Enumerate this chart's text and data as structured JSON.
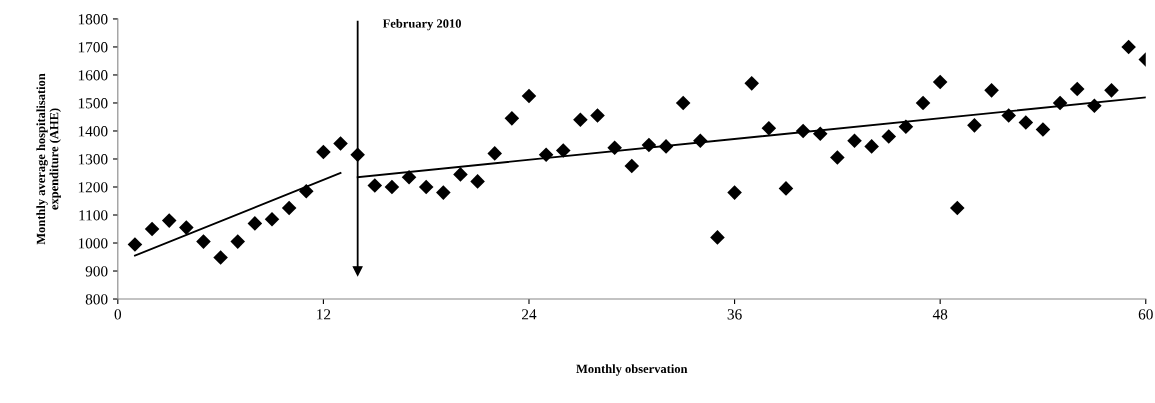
{
  "chart_data": {
    "type": "scatter",
    "xlabel": "Monthly observation",
    "ylabel": "Monthly average hospitalisation\nexpenditure (AHE)",
    "xlim": [
      0,
      60
    ],
    "xticks": [
      0,
      12,
      24,
      36,
      48,
      60
    ],
    "ylim": [
      800,
      1800
    ],
    "yticks": [
      800,
      900,
      1000,
      1100,
      1200,
      1300,
      1400,
      1500,
      1600,
      1700,
      1800
    ],
    "grid": false,
    "legend": false,
    "ref_lines": [
      {
        "axis": "x",
        "value": 14,
        "label": "February 2010"
      }
    ],
    "series": [
      {
        "marker": "diamond",
        "color": "#000000",
        "x": [
          1,
          2,
          3,
          4,
          5,
          6,
          7,
          8,
          9,
          10,
          11,
          12,
          13,
          14,
          15,
          16,
          17,
          18,
          19,
          20,
          21,
          22,
          23,
          24,
          25,
          26,
          27,
          28,
          29,
          30,
          31,
          32,
          33,
          34,
          35,
          36,
          37,
          38,
          39,
          40,
          41,
          42,
          43,
          44,
          45,
          46,
          47,
          48,
          49,
          50,
          51,
          52,
          53,
          54,
          55,
          56,
          57,
          58,
          59,
          60
        ],
        "values": [
          995,
          1050,
          1080,
          1055,
          1005,
          948,
          1005,
          1070,
          1085,
          1125,
          1185,
          1325,
          1355,
          1315,
          1205,
          1200,
          1235,
          1200,
          1180,
          1245,
          1220,
          1320,
          1445,
          1525,
          1315,
          1330,
          1440,
          1455,
          1340,
          1275,
          1350,
          1345,
          1500,
          1365,
          1020,
          1180,
          1570,
          1410,
          1195,
          1400,
          1390,
          1305,
          1365,
          1345,
          1380,
          1415,
          1500,
          1575,
          1125,
          1420,
          1545,
          1455,
          1430,
          1405,
          1500,
          1550,
          1490,
          1545,
          1700,
          1655
        ]
      },
      {
        "type": "line",
        "marker": "none",
        "color": "#000000",
        "x": [
          1,
          13
        ],
        "values": [
          955,
          1250
        ]
      },
      {
        "type": "line",
        "marker": "none",
        "color": "#000000",
        "x": [
          14,
          60
        ],
        "values": [
          1235,
          1520
        ]
      }
    ]
  }
}
